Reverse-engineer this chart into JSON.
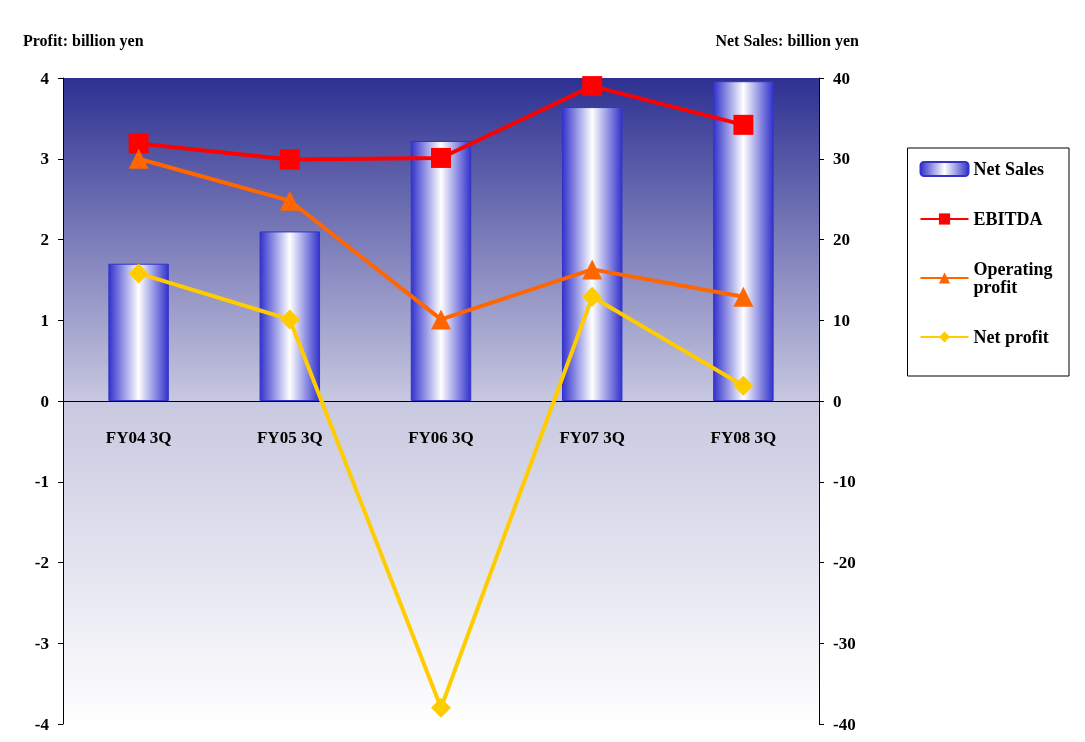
{
  "chart_data": {
    "type": "bar",
    "ylabel": "Profit: billion yen",
    "y2label": "Net Sales: billion yen",
    "categories": [
      "FY04 3Q",
      "FY05 3Q",
      "FY06 3Q",
      "FY07 3Q",
      "FY08 3Q"
    ],
    "series": [
      {
        "name": "Net Sales",
        "type": "bar",
        "axis": "y2",
        "color": "#3333cc",
        "values": [
          17.0,
          21.0,
          32.2,
          36.4,
          39.6
        ]
      },
      {
        "name": "EBITDA",
        "type": "line",
        "marker": "square",
        "color": "#ff0000",
        "values": [
          3.19,
          2.99,
          3.01,
          3.9,
          3.42
        ]
      },
      {
        "name": "Operating profit",
        "type": "line",
        "marker": "triangle",
        "color": "#ff6600",
        "values": [
          3.0,
          2.48,
          1.01,
          1.63,
          1.29
        ]
      },
      {
        "name": "Net profit",
        "type": "line",
        "marker": "diamond",
        "color": "#ffcc00",
        "values": [
          1.58,
          1.01,
          -3.8,
          1.29,
          0.19
        ]
      }
    ],
    "ylim": [
      -4,
      4
    ],
    "yticks": [
      -4,
      -3,
      -2,
      -1,
      0,
      1,
      2,
      3,
      4
    ],
    "y2lim": [
      -40,
      40
    ],
    "y2ticks": [
      -40,
      -30,
      -20,
      -10,
      0,
      10,
      20,
      30,
      40
    ],
    "grid": false,
    "legend": "right"
  }
}
